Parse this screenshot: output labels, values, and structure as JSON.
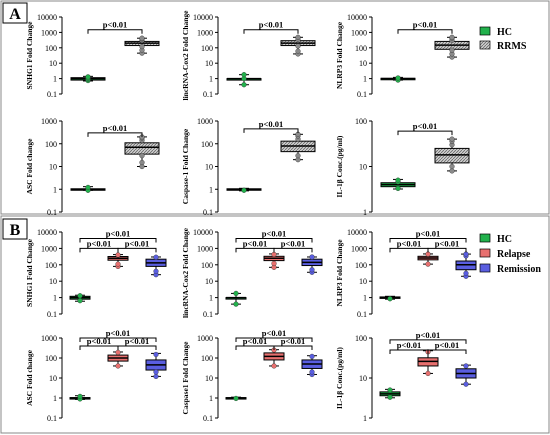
{
  "colors": {
    "hc": "#22b14c",
    "rrms": "#b8b8b8",
    "relapse": "#e8706f",
    "remission": "#5a5ee0",
    "frame": "#888888",
    "ink": "#000000"
  },
  "panel_labels": {
    "a": "A",
    "b": "B"
  },
  "legends": {
    "a": [
      {
        "label": "HC",
        "color_key": "hc",
        "hatch": false
      },
      {
        "label": "RRMS",
        "color_key": "rrms",
        "hatch": true
      }
    ],
    "b": [
      {
        "label": "HC",
        "color_key": "hc"
      },
      {
        "label": "Relapse",
        "color_key": "relapse"
      },
      {
        "label": "Remission",
        "color_key": "remission"
      }
    ]
  },
  "chart_data": [
    {
      "type": "box",
      "panel": "A",
      "ylabel": "SNHG1 Fold Change",
      "yscale": "log",
      "ylim": [
        0.1,
        10000
      ],
      "yticks": [
        "0.1",
        "1",
        "10",
        "100",
        "1000",
        "10000"
      ],
      "groups": [
        {
          "name": "HC",
          "color_key": "hc",
          "min": 0.7,
          "q1": 0.8,
          "median": 1.0,
          "q3": 1.15,
          "max": 1.4,
          "points": [
            0.75,
            0.9,
            1.1,
            1.3
          ]
        },
        {
          "name": "RRMS",
          "color_key": "rrms",
          "hatch": true,
          "min": 45,
          "q1": 140,
          "median": 200,
          "q3": 260,
          "max": 420,
          "points": [
            45,
            70,
            120,
            300,
            380,
            420
          ]
        }
      ],
      "annotations": [
        {
          "text": "p<0.01",
          "from": 0,
          "to": 1,
          "y": 1500
        }
      ]
    },
    {
      "type": "box",
      "panel": "A",
      "ylabel": "lincRNA-Cox2 Fold Change",
      "yscale": "log",
      "ylim": [
        0.1,
        10000
      ],
      "yticks": [
        "0.1",
        "1",
        "10",
        "100",
        "1000",
        "10000"
      ],
      "groups": [
        {
          "name": "HC",
          "color_key": "hc",
          "min": 0.4,
          "q1": 1.0,
          "median": 1.0,
          "q3": 1.0,
          "max": 1.8,
          "points": [
            0.4,
            1.0,
            1.8
          ]
        },
        {
          "name": "RRMS",
          "color_key": "rrms",
          "hatch": true,
          "min": 40,
          "q1": 140,
          "median": 200,
          "q3": 290,
          "max": 480,
          "points": [
            40,
            60,
            130,
            350,
            480
          ]
        }
      ],
      "annotations": [
        {
          "text": "p<0.01",
          "from": 0,
          "to": 1,
          "y": 1500
        }
      ]
    },
    {
      "type": "box",
      "panel": "A",
      "ylabel": "NLRP3 Fold Change",
      "yscale": "log",
      "ylim": [
        0.1,
        10000
      ],
      "yticks": [
        "0.1",
        "1",
        "10",
        "100",
        "1000",
        "10000"
      ],
      "groups": [
        {
          "name": "HC",
          "color_key": "hc",
          "min": 0.8,
          "q1": 0.95,
          "median": 1.0,
          "q3": 1.05,
          "max": 1.2,
          "points": [
            0.8,
            1.1
          ]
        },
        {
          "name": "RRMS",
          "color_key": "rrms",
          "hatch": true,
          "min": 25,
          "q1": 80,
          "median": 150,
          "q3": 260,
          "max": 480,
          "points": [
            25,
            40,
            70,
            300,
            420,
            480
          ]
        }
      ],
      "annotations": [
        {
          "text": "p<0.01",
          "from": 0,
          "to": 1,
          "y": 1500
        }
      ]
    },
    {
      "type": "box",
      "panel": "A",
      "ylabel": "ASC Fold change",
      "yscale": "log",
      "ylim": [
        0.1,
        1000
      ],
      "yticks": [
        "0.1",
        "1",
        "10",
        "100",
        "1000"
      ],
      "groups": [
        {
          "name": "HC",
          "color_key": "hc",
          "min": 0.9,
          "q1": 0.95,
          "median": 1.0,
          "q3": 1.05,
          "max": 1.3,
          "points": [
            0.9,
            1.2
          ]
        },
        {
          "name": "RRMS",
          "color_key": "rrms",
          "hatch": true,
          "min": 10,
          "q1": 35,
          "median": 70,
          "q3": 110,
          "max": 200,
          "points": [
            10,
            15,
            30,
            140,
            180,
            200
          ]
        }
      ],
      "annotations": [
        {
          "text": "p<0.01",
          "from": 0,
          "to": 1,
          "y": 300
        }
      ]
    },
    {
      "type": "box",
      "panel": "A",
      "ylabel": "Caspase-1 Fold Change",
      "yscale": "log",
      "ylim": [
        0.1,
        1000
      ],
      "yticks": [
        "0.1",
        "1",
        "10",
        "100",
        "1000"
      ],
      "groups": [
        {
          "name": "HC",
          "color_key": "hc",
          "min": 0.85,
          "q1": 0.95,
          "median": 1.0,
          "q3": 1.05,
          "max": 1.1,
          "points": [
            0.9
          ]
        },
        {
          "name": "RRMS",
          "color_key": "rrms",
          "hatch": true,
          "min": 20,
          "q1": 45,
          "median": 80,
          "q3": 130,
          "max": 260,
          "points": [
            20,
            30,
            160,
            220,
            260
          ]
        }
      ],
      "annotations": [
        {
          "text": "p<0.01",
          "from": 0,
          "to": 1,
          "y": 450
        }
      ]
    },
    {
      "type": "box",
      "panel": "A",
      "ylabel": "IL-1β Conc.(pg/ml)",
      "yscale": "log",
      "ylim": [
        1,
        100
      ],
      "yticks": [
        "1",
        "10",
        "100"
      ],
      "groups": [
        {
          "name": "HC",
          "color_key": "hc",
          "min": 3.2,
          "q1": 3.6,
          "median": 4.0,
          "q3": 4.4,
          "max": 5.2,
          "points": [
            3.3,
            4.6,
            5.0
          ]
        },
        {
          "name": "RRMS",
          "color_key": "rrms",
          "hatch": true,
          "min": 8,
          "q1": 12,
          "median": 18,
          "q3": 25,
          "max": 40,
          "points": [
            8,
            10,
            30,
            36,
            40
          ]
        }
      ],
      "annotations": [
        {
          "text": "p<0.01",
          "from": 0,
          "to": 1,
          "y": 60
        }
      ]
    },
    {
      "type": "box",
      "panel": "B",
      "ylabel": "SNHG1 Fold Change",
      "yscale": "log",
      "ylim": [
        0.1,
        10000
      ],
      "yticks": [
        "0.1",
        "1",
        "10",
        "100",
        "1000",
        "10000"
      ],
      "groups": [
        {
          "name": "HC",
          "color_key": "hc",
          "min": 0.6,
          "q1": 0.8,
          "median": 1.0,
          "q3": 1.2,
          "max": 1.4,
          "points": [
            0.65,
            1.3
          ]
        },
        {
          "name": "Relapse",
          "color_key": "relapse",
          "min": 80,
          "q1": 190,
          "median": 250,
          "q3": 320,
          "max": 420,
          "points": [
            80,
            110,
            400
          ]
        },
        {
          "name": "Remission",
          "color_key": "remission",
          "min": 25,
          "q1": 80,
          "median": 130,
          "q3": 220,
          "max": 300,
          "points": [
            25,
            40,
            290
          ]
        }
      ],
      "annotations": [
        {
          "text": "p<0.01",
          "from": 0,
          "to": 2,
          "y": 4000
        },
        {
          "text": "p<0.01",
          "from": 0,
          "to": 1,
          "y": 1000
        },
        {
          "text": "p<0.01",
          "from": 1,
          "to": 2,
          "y": 1000
        }
      ]
    },
    {
      "type": "box",
      "panel": "B",
      "ylabel": "lincRNA-Cox2 Fold Change",
      "yscale": "log",
      "ylim": [
        0.1,
        10000
      ],
      "yticks": [
        "0.1",
        "1",
        "10",
        "100",
        "1000",
        "10000"
      ],
      "groups": [
        {
          "name": "HC",
          "color_key": "hc",
          "min": 0.4,
          "q1": 1.0,
          "median": 1.0,
          "q3": 1.0,
          "max": 1.8,
          "points": [
            0.4,
            1.8
          ]
        },
        {
          "name": "Relapse",
          "color_key": "relapse",
          "min": 70,
          "q1": 180,
          "median": 250,
          "q3": 330,
          "max": 460,
          "points": [
            70,
            120,
            430
          ]
        },
        {
          "name": "Remission",
          "color_key": "remission",
          "min": 35,
          "q1": 90,
          "median": 140,
          "q3": 220,
          "max": 300,
          "points": [
            35,
            50,
            300
          ]
        }
      ],
      "annotations": [
        {
          "text": "p<0.01",
          "from": 0,
          "to": 2,
          "y": 4000
        },
        {
          "text": "p<0.01",
          "from": 0,
          "to": 1,
          "y": 1000
        },
        {
          "text": "p<0.01",
          "from": 1,
          "to": 2,
          "y": 1000
        }
      ]
    },
    {
      "type": "box",
      "panel": "B",
      "ylabel": "NLRP3 Fold Change",
      "yscale": "log",
      "ylim": [
        0.1,
        10000
      ],
      "yticks": [
        "0.1",
        "1",
        "10",
        "100",
        "1000",
        "10000"
      ],
      "groups": [
        {
          "name": "HC",
          "color_key": "hc",
          "min": 0.8,
          "q1": 0.9,
          "median": 1.0,
          "q3": 1.1,
          "max": 1.2,
          "points": [
            0.85
          ]
        },
        {
          "name": "Relapse",
          "color_key": "relapse",
          "min": 110,
          "q1": 200,
          "median": 260,
          "q3": 330,
          "max": 460,
          "points": [
            110,
            450
          ]
        },
        {
          "name": "Remission",
          "color_key": "remission",
          "min": 20,
          "q1": 50,
          "median": 100,
          "q3": 170,
          "max": 450,
          "points": [
            20,
            30,
            350,
            450
          ]
        }
      ],
      "annotations": [
        {
          "text": "p<0.01",
          "from": 0,
          "to": 2,
          "y": 4000
        },
        {
          "text": "p<0.01",
          "from": 0,
          "to": 1,
          "y": 1000
        },
        {
          "text": "p<0.01",
          "from": 1,
          "to": 2,
          "y": 1000
        }
      ]
    },
    {
      "type": "box",
      "panel": "B",
      "ylabel": "ASC Fold change",
      "yscale": "log",
      "ylim": [
        0.1,
        1000
      ],
      "yticks": [
        "0.1",
        "1",
        "10",
        "100",
        "1000"
      ],
      "groups": [
        {
          "name": "HC",
          "color_key": "hc",
          "min": 0.85,
          "q1": 0.95,
          "median": 1.0,
          "q3": 1.05,
          "max": 1.3,
          "points": [
            0.9,
            1.2
          ]
        },
        {
          "name": "Relapse",
          "color_key": "relapse",
          "min": 40,
          "q1": 70,
          "median": 100,
          "q3": 140,
          "max": 200,
          "points": [
            40,
            190
          ]
        },
        {
          "name": "Remission",
          "color_key": "remission",
          "min": 12,
          "q1": 25,
          "median": 45,
          "q3": 80,
          "max": 170,
          "points": [
            12,
            20,
            150
          ]
        }
      ],
      "annotations": [
        {
          "text": "p<0.01",
          "from": 0,
          "to": 2,
          "y": 1000
        },
        {
          "text": "p<0.01",
          "from": 0,
          "to": 1,
          "y": 400
        },
        {
          "text": "p<0.01",
          "from": 1,
          "to": 2,
          "y": 400
        }
      ]
    },
    {
      "type": "box",
      "panel": "B",
      "ylabel": "Caspase1 Fold Change",
      "yscale": "log",
      "ylim": [
        0.1,
        1000
      ],
      "yticks": [
        "0.1",
        "1",
        "10",
        "100",
        "1000"
      ],
      "groups": [
        {
          "name": "HC",
          "color_key": "hc",
          "min": 0.9,
          "q1": 0.95,
          "median": 1.0,
          "q3": 1.05,
          "max": 1.1,
          "points": [
            0.95
          ]
        },
        {
          "name": "Relapse",
          "color_key": "relapse",
          "min": 40,
          "q1": 80,
          "median": 120,
          "q3": 180,
          "max": 260,
          "points": [
            40,
            250
          ]
        },
        {
          "name": "Remission",
          "color_key": "remission",
          "min": 15,
          "q1": 30,
          "median": 50,
          "q3": 80,
          "max": 130,
          "points": [
            15,
            20,
            120
          ]
        }
      ],
      "annotations": [
        {
          "text": "p<0.01",
          "from": 0,
          "to": 2,
          "y": 1000
        },
        {
          "text": "p<0.01",
          "from": 0,
          "to": 1,
          "y": 400
        },
        {
          "text": "p<0.01",
          "from": 1,
          "to": 2,
          "y": 400
        }
      ]
    },
    {
      "type": "box",
      "panel": "B",
      "ylabel": "IL-1β Conc.(pg/ml)",
      "yscale": "log",
      "ylim": [
        1,
        100
      ],
      "yticks": [
        "1",
        "10",
        "100"
      ],
      "groups": [
        {
          "name": "HC",
          "color_key": "hc",
          "min": 3.2,
          "q1": 3.6,
          "median": 4.0,
          "q3": 4.5,
          "max": 5.2,
          "points": [
            3.3,
            5.0
          ]
        },
        {
          "name": "Relapse",
          "color_key": "relapse",
          "min": 13,
          "q1": 20,
          "median": 26,
          "q3": 32,
          "max": 48,
          "points": [
            13,
            45
          ]
        },
        {
          "name": "Remission",
          "color_key": "remission",
          "min": 7,
          "q1": 10,
          "median": 13,
          "q3": 17,
          "max": 21,
          "points": [
            7,
            20
          ]
        }
      ],
      "annotations": [
        {
          "text": "p<0.01",
          "from": 0,
          "to": 2,
          "y": 90
        },
        {
          "text": "p<0.01",
          "from": 0,
          "to": 1,
          "y": 50
        },
        {
          "text": "p<0.01",
          "from": 1,
          "to": 2,
          "y": 50
        }
      ]
    }
  ]
}
